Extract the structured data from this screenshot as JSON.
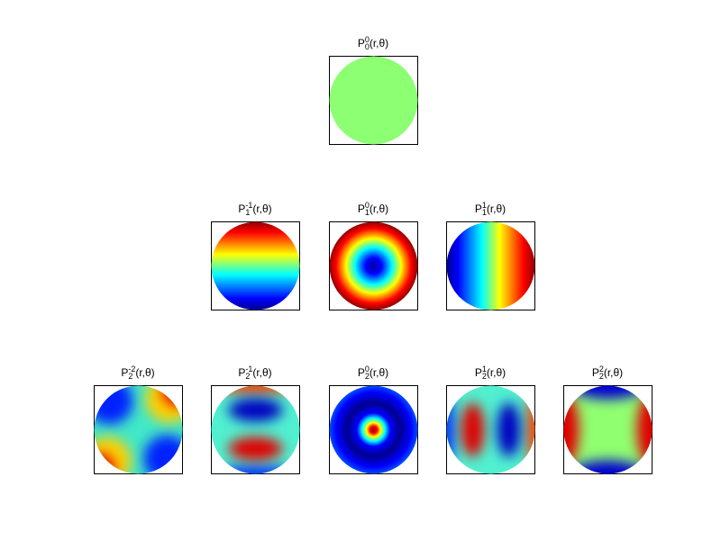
{
  "figure": {
    "panels": [
      {
        "base": "P",
        "n": "0",
        "m": "0",
        "args": "(r,θ)"
      },
      {
        "base": "P",
        "n": "1",
        "m": "-1",
        "args": "(r,θ)"
      },
      {
        "base": "P",
        "n": "1",
        "m": "0",
        "args": "(r,θ)"
      },
      {
        "base": "P",
        "n": "1",
        "m": "1",
        "args": "(r,θ)"
      },
      {
        "base": "P",
        "n": "2",
        "m": "-2",
        "args": "(r,θ)"
      },
      {
        "base": "P",
        "n": "2",
        "m": "-1",
        "args": "(r,θ)"
      },
      {
        "base": "P",
        "n": "2",
        "m": "0",
        "args": "(r,θ)"
      },
      {
        "base": "P",
        "n": "2",
        "m": "1",
        "args": "(r,θ)"
      },
      {
        "base": "P",
        "n": "2",
        "m": "2",
        "args": "(r,θ)"
      }
    ]
  }
}
